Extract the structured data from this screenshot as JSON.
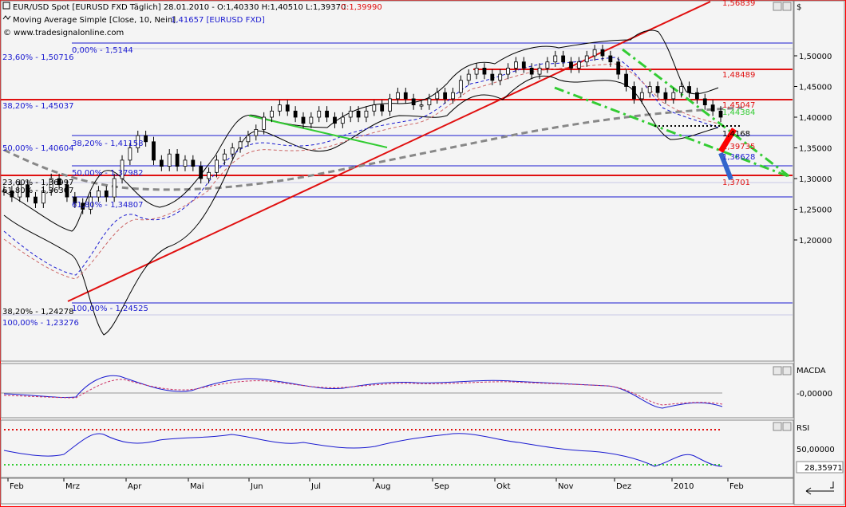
{
  "header": {
    "line1": "EUR/USD Spot [EURUSD FXD  Täglich] 28.01.2010 - O:1,40330 H:1,40510 L:1,39370",
    "line1_close": "C:1,39990",
    "line2a": "Moving Average Simple [Close, 10, Nein]",
    "line2b": "1,41657 [EURUSD FXD]",
    "line3": "© www.tradesignalonline.com",
    "currency": "$"
  },
  "price_axis": {
    "ticks": [
      "1,50000",
      "1,45000",
      "1,40000",
      "1,35000",
      "1,30000",
      "1,25000",
      "1,20000"
    ]
  },
  "panels": {
    "macda_label": "MACDA",
    "macda_tick": "-0,00000",
    "rsi_label": "RSI",
    "rsi_tick": "50,00000",
    "rsi_value": "28,35971"
  },
  "time_axis": [
    "Feb",
    "Mrz",
    "Apr",
    "Mai",
    "Jun",
    "Jul",
    "Aug",
    "Sep",
    "Okt",
    "Nov",
    "Dez",
    "2010",
    "Feb"
  ],
  "fib_labels": {
    "upper_0": "0,00% - 1,5144",
    "left_2360": "23,60% - 1,50716",
    "left_3820": "38,20% - 1,45037",
    "mid_3820": "38,20% - 1,41158",
    "left_5000": "50,00% - 1,40604",
    "mid_5000": "50,00% - 1,37982",
    "left_2360b": "23,60% - 1,36997",
    "left_6180": "61,80% - 1,36307",
    "mid_6180": "61,80% - 1,34807",
    "left_3820b": "38,20% - 1,24278",
    "mid_100": "100,00% - 1,24525",
    "left_100": "100,00% - 1,23276"
  },
  "right_labels": {
    "top": "1,56839",
    "l1": "1,48489",
    "l2": "1,45047",
    "l3": "1,44384",
    "l4": "1,4168",
    "l5": "1,39735",
    "l6": "1,38628",
    "l7": "1,3701"
  },
  "colors": {
    "grid_line": "#1a1ad0",
    "support_line": "#e01010",
    "green_channel": "#33cc33",
    "ma_gray": "#888888",
    "bollinger": "#000000"
  },
  "chart_data": {
    "type": "candlestick",
    "instrument": "EUR/USD",
    "x_range": [
      "Feb 2009",
      "Feb 2010"
    ],
    "ylim": [
      1.19,
      1.57
    ],
    "horizontal_levels": [
      1.5144,
      1.48489,
      1.45047,
      1.41158,
      1.37982,
      1.3701,
      1.34807,
      1.24525,
      1.23276
    ],
    "close_series": [
      1.28,
      1.27,
      1.29,
      1.27,
      1.26,
      1.28,
      1.3,
      1.29,
      1.27,
      1.26,
      1.25,
      1.27,
      1.28,
      1.27,
      1.3,
      1.33,
      1.35,
      1.37,
      1.36,
      1.33,
      1.32,
      1.34,
      1.32,
      1.33,
      1.32,
      1.3,
      1.31,
      1.33,
      1.34,
      1.35,
      1.36,
      1.37,
      1.38,
      1.4,
      1.41,
      1.42,
      1.41,
      1.4,
      1.39,
      1.4,
      1.41,
      1.4,
      1.39,
      1.4,
      1.41,
      1.4,
      1.41,
      1.42,
      1.41,
      1.43,
      1.44,
      1.43,
      1.42,
      1.42,
      1.43,
      1.44,
      1.43,
      1.44,
      1.46,
      1.47,
      1.48,
      1.47,
      1.46,
      1.47,
      1.48,
      1.49,
      1.48,
      1.47,
      1.48,
      1.49,
      1.5,
      1.49,
      1.48,
      1.49,
      1.5,
      1.51,
      1.5,
      1.49,
      1.47,
      1.45,
      1.43,
      1.44,
      1.45,
      1.44,
      1.43,
      1.44,
      1.45,
      1.44,
      1.43,
      1.42,
      1.41,
      1.4
    ],
    "rsi_last": 28.35971
  }
}
